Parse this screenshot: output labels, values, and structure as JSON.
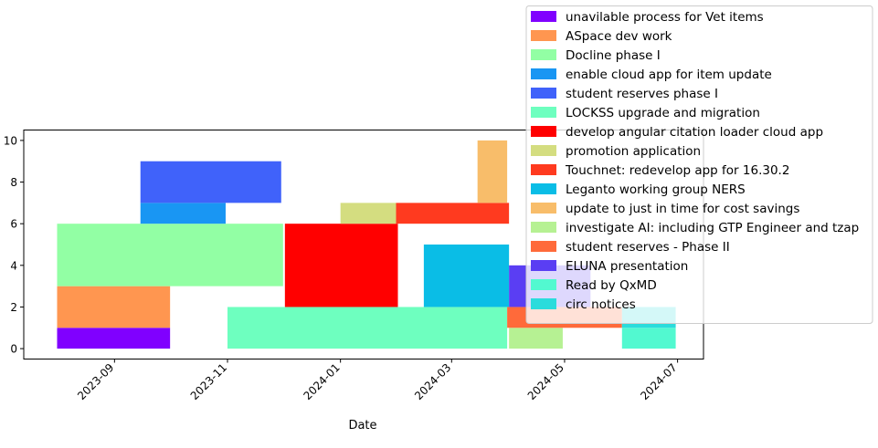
{
  "chart_data": {
    "type": "bar",
    "orientation": "horizontal-timeline",
    "xlabel": "Date",
    "ylabel": "",
    "xlim": [
      "2023-07-14",
      "2024-07-15"
    ],
    "ylim": [
      -0.5,
      10.5
    ],
    "x_ticks": [
      "2023-09",
      "2023-11",
      "2024-01",
      "2024-03",
      "2024-05",
      "2024-07"
    ],
    "y_ticks": [
      0,
      2,
      4,
      6,
      8,
      10
    ],
    "legend_position": "top-right, outside plot",
    "grid": false,
    "series": [
      {
        "name": "unavilable process for Vet items",
        "color": "#8000ff",
        "start": "2023-08-01",
        "end": "2023-10-01",
        "y0": 0,
        "y1": 1
      },
      {
        "name": "ASpace dev work",
        "color": "#ff9650",
        "start": "2023-08-01",
        "end": "2023-10-01",
        "y0": 1,
        "y1": 3
      },
      {
        "name": "Docline phase I",
        "color": "#92ffa4",
        "start": "2023-08-01",
        "end": "2023-12-01",
        "y0": 3,
        "y1": 6
      },
      {
        "name": "enable cloud app for item update",
        "color": "#1996f3",
        "start": "2023-09-15",
        "end": "2023-10-31",
        "y0": 6,
        "y1": 7
      },
      {
        "name": "student reserves phase I",
        "color": "#4062fa",
        "start": "2023-09-15",
        "end": "2023-11-30",
        "y0": 7,
        "y1": 9
      },
      {
        "name": "LOCKSS upgrade and migration",
        "color": "#6effbf",
        "start": "2023-11-01",
        "end": "2024-03-31",
        "y0": 0,
        "y1": 2
      },
      {
        "name": "develop angular citation loader cloud app",
        "color": "#ff0000",
        "start": "2023-12-02",
        "end": "2024-02-01",
        "y0": 2,
        "y1": 6
      },
      {
        "name": "promotion application",
        "color": "#d4dd80",
        "start": "2024-01-01",
        "end": "2024-01-31",
        "y0": 6,
        "y1": 7
      },
      {
        "name": "Touchnet: redevelop app for 16.30.2",
        "color": "#ff3a1f",
        "start": "2024-01-31",
        "end": "2024-04-01",
        "y0": 6,
        "y1": 7
      },
      {
        "name": "Leganto working group NERS",
        "color": "#0abde6",
        "start": "2024-02-15",
        "end": "2024-04-01",
        "y0": 2,
        "y1": 5
      },
      {
        "name": "update to just in time for cost savings",
        "color": "#f8bd6a",
        "start": "2024-03-15",
        "end": "2024-03-31",
        "y0": 7,
        "y1": 10
      },
      {
        "name": "investigate AI: including GTP Engineer and tzap",
        "color": "#b6f193",
        "start": "2024-04-01",
        "end": "2024-04-30",
        "y0": 0,
        "y1": 1
      },
      {
        "name": "student reserves - Phase II",
        "color": "#ff6a3a",
        "start": "2024-03-31",
        "end": "2024-06-01",
        "y0": 1,
        "y1": 2
      },
      {
        "name": "ELUNA presentation",
        "color": "#5a3ef3",
        "start": "2024-04-01",
        "end": "2024-05-15",
        "y0": 2,
        "y1": 4
      },
      {
        "name": "Read by QxMD",
        "color": "#52f9d0",
        "start": "2024-06-01",
        "end": "2024-06-30",
        "y0": 0,
        "y1": 1
      },
      {
        "name": "circ notices",
        "color": "#2adcdc",
        "start": "2024-06-01",
        "end": "2024-06-30",
        "y0": 1,
        "y1": 2
      }
    ]
  }
}
